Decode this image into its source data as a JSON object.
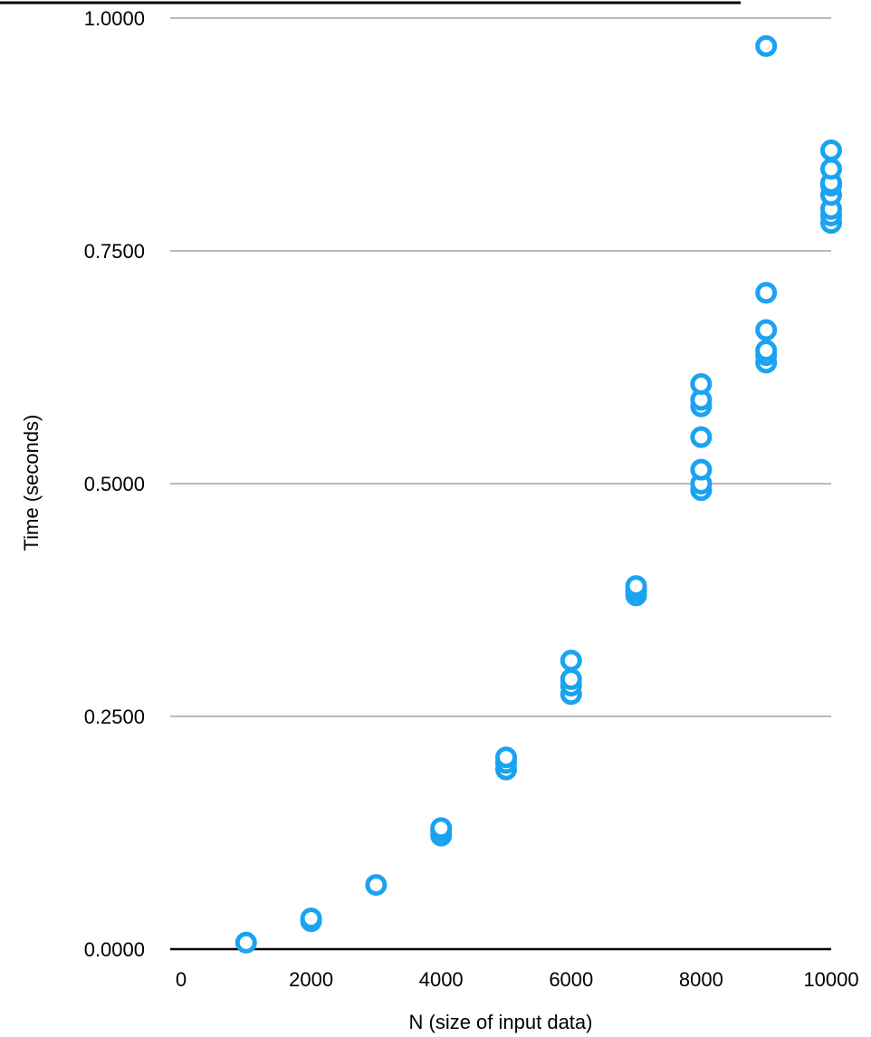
{
  "chart_data": {
    "type": "scatter",
    "title": "",
    "xlabel": "N (size of input data)",
    "ylabel": "Time (seconds)",
    "xlim": [
      0,
      10000
    ],
    "ylim": [
      0,
      1
    ],
    "x_ticks": [
      "0",
      "2000",
      "4000",
      "6000",
      "8000",
      "10000"
    ],
    "y_ticks": [
      "0.0000",
      "0.2500",
      "0.5000",
      "0.7500",
      "1.0000"
    ],
    "x_tick_values": [
      0,
      2000,
      4000,
      6000,
      8000,
      10000
    ],
    "y_tick_values": [
      0,
      0.25,
      0.5,
      0.75,
      1.0
    ],
    "grid": "horizontal",
    "marker_color": "#1aa3f0",
    "grid_color": "#b9b9b9",
    "points": [
      {
        "x": 1000,
        "y": 0.007
      },
      {
        "x": 2000,
        "y": 0.03
      },
      {
        "x": 2000,
        "y": 0.033
      },
      {
        "x": 3000,
        "y": 0.069
      },
      {
        "x": 4000,
        "y": 0.122
      },
      {
        "x": 4000,
        "y": 0.127
      },
      {
        "x": 4000,
        "y": 0.13
      },
      {
        "x": 5000,
        "y": 0.193
      },
      {
        "x": 5000,
        "y": 0.2
      },
      {
        "x": 5000,
        "y": 0.206
      },
      {
        "x": 6000,
        "y": 0.274
      },
      {
        "x": 6000,
        "y": 0.283
      },
      {
        "x": 6000,
        "y": 0.29
      },
      {
        "x": 6000,
        "y": 0.31
      },
      {
        "x": 7000,
        "y": 0.38
      },
      {
        "x": 7000,
        "y": 0.385
      },
      {
        "x": 7000,
        "y": 0.39
      },
      {
        "x": 8000,
        "y": 0.493
      },
      {
        "x": 8000,
        "y": 0.5
      },
      {
        "x": 8000,
        "y": 0.515
      },
      {
        "x": 8000,
        "y": 0.55
      },
      {
        "x": 8000,
        "y": 0.583
      },
      {
        "x": 8000,
        "y": 0.59
      },
      {
        "x": 8000,
        "y": 0.607
      },
      {
        "x": 9000,
        "y": 0.63
      },
      {
        "x": 9000,
        "y": 0.638
      },
      {
        "x": 9000,
        "y": 0.643
      },
      {
        "x": 9000,
        "y": 0.665
      },
      {
        "x": 9000,
        "y": 0.705
      },
      {
        "x": 9000,
        "y": 0.97
      },
      {
        "x": 10000,
        "y": 0.78
      },
      {
        "x": 10000,
        "y": 0.788
      },
      {
        "x": 10000,
        "y": 0.795
      },
      {
        "x": 10000,
        "y": 0.81
      },
      {
        "x": 10000,
        "y": 0.82
      },
      {
        "x": 10000,
        "y": 0.823
      },
      {
        "x": 10000,
        "y": 0.838
      },
      {
        "x": 10000,
        "y": 0.858
      }
    ]
  }
}
